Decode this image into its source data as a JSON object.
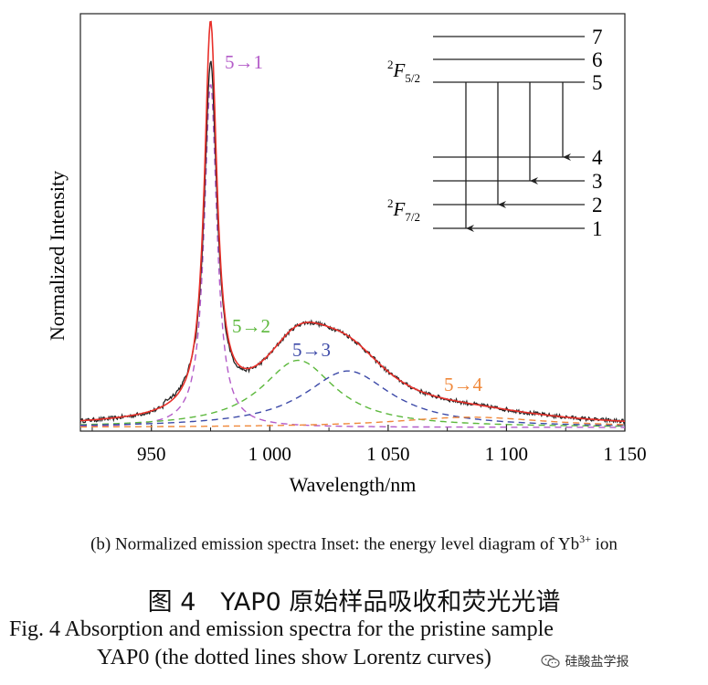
{
  "chart_data": {
    "type": "line",
    "xlabel": "Wavelength/nm",
    "ylabel": "Normalized Intensity",
    "xlim": [
      920,
      1150
    ],
    "ylim": [
      0,
      1.0
    ],
    "xticks": [
      950,
      1000,
      1050,
      1100,
      1150
    ],
    "xtick_labels": [
      "950",
      "1 000",
      "1 050",
      "1 100",
      "1 150"
    ],
    "grid": false,
    "components": [
      {
        "label": "5→1",
        "center": 975,
        "fwhm": 6.5,
        "amp": 0.84,
        "color": "#b35bc8"
      },
      {
        "label": "5→2",
        "center": 1012,
        "fwhm": 38,
        "amp": 0.164,
        "color": "#5cb83c"
      },
      {
        "label": "5→3",
        "center": 1033,
        "fwhm": 45,
        "amp": 0.138,
        "color": "#3d4aa8"
      },
      {
        "label": "5→4",
        "center": 1085,
        "fwhm": 80,
        "amp": 0.025,
        "color": "#f0883a"
      }
    ],
    "series_colors": {
      "measured": "#222222",
      "fit": "#e8302a"
    },
    "inset": {
      "upper_manifold": "²F₅/₂",
      "lower_manifold": "²F₇/₂",
      "levels": [
        {
          "label": "7",
          "y": 0.0
        },
        {
          "label": "6",
          "y": 0.25
        },
        {
          "label": "5",
          "y": 0.5
        },
        {
          "label": "4",
          "y": 1.32
        },
        {
          "label": "3",
          "y": 1.58
        },
        {
          "label": "2",
          "y": 1.84
        },
        {
          "label": "1",
          "y": 2.1
        }
      ]
    }
  },
  "captions": {
    "sub_prefix": "(b) Normalized emission spectra Inset: the energy level diagram of Yb",
    "sub_sup": "3+",
    "sub_suffix": " ion",
    "cn": "图 4　YAP0 原始样品吸收和荧光光谱",
    "en_line1": "Fig. 4    Absorption and emission spectra for the pristine sample",
    "en_line2": "YAP0 (the dotted lines show Lorentz curves)"
  },
  "watermark": {
    "text": "硅酸盐学报",
    "icon": "wechat-icon"
  }
}
